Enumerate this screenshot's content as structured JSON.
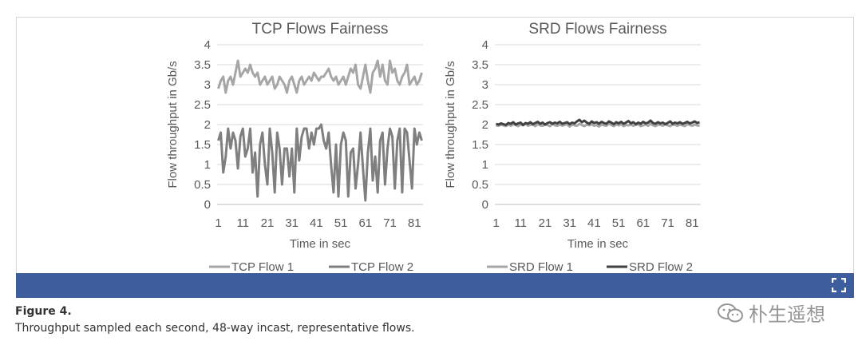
{
  "chart_data": [
    {
      "type": "line",
      "title": "TCP Flows Fairness",
      "xlabel": "Time in sec",
      "ylabel": "Flow throughput in Gb/s",
      "ylim": [
        0,
        4
      ],
      "yticks": [
        "0",
        "0.5",
        "1",
        "1.5",
        "2",
        "2.5",
        "3",
        "3.5",
        "4"
      ],
      "xticks": [
        "1",
        "11",
        "21",
        "31",
        "41",
        "51",
        "61",
        "71",
        "81"
      ],
      "x_count": 84,
      "series": [
        {
          "name": "TCP Flow 1",
          "color": "#a6a6a6",
          "values": [
            2.9,
            3.1,
            3.2,
            2.8,
            3.1,
            3.2,
            3.0,
            3.3,
            3.6,
            3.2,
            3.3,
            3.4,
            3.3,
            3.5,
            3.3,
            3.2,
            3.3,
            3.0,
            3.1,
            3.2,
            3.0,
            3.1,
            3.2,
            2.9,
            3.0,
            3.2,
            3.1,
            3.0,
            2.8,
            3.1,
            3.2,
            3.0,
            2.8,
            3.1,
            3.2,
            3.0,
            3.1,
            3.2,
            3.1,
            3.3,
            3.2,
            3.1,
            3.2,
            3.2,
            3.3,
            3.4,
            3.2,
            3.1,
            3.2,
            3.0,
            3.1,
            3.2,
            3.0,
            3.2,
            3.4,
            3.3,
            3.5,
            3.0,
            2.9,
            3.2,
            3.5,
            3.1,
            2.8,
            3.3,
            3.4,
            3.6,
            3.2,
            3.5,
            3.1,
            3.0,
            3.6,
            3.3,
            3.4,
            3.1,
            3.0,
            3.2,
            3.3,
            3.5,
            3.0,
            3.1,
            3.2,
            3.0,
            3.1,
            3.3
          ]
        },
        {
          "name": "TCP Flow 2",
          "color": "#7f7f7f",
          "values": [
            1.6,
            1.8,
            0.8,
            1.2,
            1.9,
            1.4,
            1.8,
            1.6,
            0.9,
            1.7,
            1.9,
            1.2,
            1.4,
            1.9,
            0.8,
            1.3,
            0.2,
            1.5,
            1.8,
            1.0,
            0.5,
            1.9,
            1.3,
            0.3,
            1.8,
            1.4,
            0.5,
            1.4,
            1.4,
            0.7,
            1.4,
            0.3,
            1.9,
            1.1,
            1.7,
            1.9,
            1.9,
            1.4,
            1.8,
            1.5,
            1.9,
            1.9,
            2.0,
            1.6,
            1.4,
            1.8,
            1.0,
            0.3,
            1.5,
            0.2,
            1.5,
            1.8,
            1.6,
            0.2,
            1.3,
            1.4,
            0.4,
            1.0,
            1.8,
            0.9,
            0.1,
            1.3,
            1.9,
            0.6,
            1.2,
            0.3,
            1.6,
            1.8,
            0.5,
            1.4,
            1.9,
            1.7,
            0.4,
            1.6,
            1.9,
            0.3,
            1.9,
            1.8,
            1.1,
            0.4,
            1.9,
            1.5,
            1.8,
            1.6
          ]
        }
      ]
    },
    {
      "type": "line",
      "title": "SRD Flows Fairness",
      "xlabel": "Time in sec",
      "ylabel": "Flow throughput in Gb/s",
      "ylim": [
        0,
        4
      ],
      "yticks": [
        "0",
        "0.5",
        "1",
        "1.5",
        "2",
        "2.5",
        "3",
        "3.5",
        "4"
      ],
      "xticks": [
        "1",
        "11",
        "21",
        "31",
        "41",
        "51",
        "61",
        "71",
        "81"
      ],
      "x_count": 84,
      "series": [
        {
          "name": "SRD Flow 1",
          "color": "#a6a6a6",
          "values": [
            1.98,
            1.97,
            2.0,
            1.98,
            1.96,
            2.0,
            1.97,
            2.01,
            1.99,
            1.96,
            2.0,
            1.98,
            2.02,
            1.97,
            1.99,
            2.0,
            1.96,
            2.01,
            1.98,
            1.97,
            2.0,
            1.99,
            1.96,
            2.02,
            1.98,
            1.97,
            2.0,
            1.97,
            1.99,
            2.01,
            1.95,
            2.0,
            1.98,
            1.97,
            2.02,
            1.99,
            1.96,
            2.0,
            1.98,
            2.01,
            1.97,
            1.99,
            1.95,
            2.0,
            1.98,
            1.97,
            2.02,
            1.99,
            1.96,
            2.0,
            1.98,
            2.01,
            1.96,
            1.99,
            1.98,
            2.0,
            1.97,
            1.99,
            2.01,
            1.96,
            1.98,
            2.0,
            1.97,
            2.02,
            1.98,
            1.96,
            2.0,
            1.99,
            1.97,
            2.01,
            1.98,
            1.96,
            2.0,
            1.99,
            1.97,
            2.0,
            1.98,
            1.96,
            2.01,
            1.99,
            1.97,
            2.0,
            1.98,
            1.97
          ]
        },
        {
          "name": "SRD Flow 2",
          "color": "#404040",
          "values": [
            2.02,
            2.0,
            2.03,
            2.01,
            1.99,
            2.04,
            2.02,
            2.06,
            2.0,
            2.03,
            2.05,
            1.99,
            2.04,
            2.02,
            2.06,
            2.01,
            2.04,
            2.07,
            2.02,
            2.05,
            2.0,
            2.04,
            2.06,
            2.02,
            2.05,
            2.03,
            2.07,
            2.02,
            2.04,
            2.06,
            2.01,
            2.05,
            2.03,
            2.08,
            2.12,
            2.06,
            2.1,
            2.05,
            2.02,
            2.08,
            2.04,
            2.06,
            2.02,
            2.07,
            2.04,
            2.02,
            2.08,
            2.05,
            2.01,
            2.06,
            2.03,
            2.07,
            2.02,
            2.05,
            2.09,
            2.03,
            2.06,
            2.01,
            2.05,
            2.02,
            2.07,
            2.03,
            2.05,
            2.1,
            2.04,
            2.02,
            2.06,
            2.03,
            2.05,
            2.01,
            2.04,
            2.08,
            2.02,
            2.05,
            2.03,
            2.06,
            2.02,
            2.04,
            2.07,
            2.03,
            2.05,
            2.08,
            2.04,
            2.06
          ]
        }
      ]
    }
  ],
  "caption": {
    "title": "Figure 4.",
    "text": "Throughput sampled each second, 48-way incast, representative flows."
  },
  "watermark": {
    "text": "朴生遥想"
  },
  "colors": {
    "bar": "#3e5d9d",
    "grid": "#d9d9d9"
  }
}
